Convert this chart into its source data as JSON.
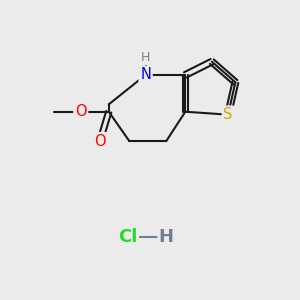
{
  "background_color": "#ebebeb",
  "bond_color": "#1a1a1a",
  "bond_width": 1.5,
  "atom_colors": {
    "N": "#0000ee",
    "H_N": "#808080",
    "S": "#ccaa00",
    "O": "#ff0000",
    "Cl": "#22dd22",
    "H_Cl": "#708090",
    "C": "#1a1a1a"
  },
  "font_size_atom": 10.5,
  "font_size_H": 9,
  "font_size_hcl": 13
}
